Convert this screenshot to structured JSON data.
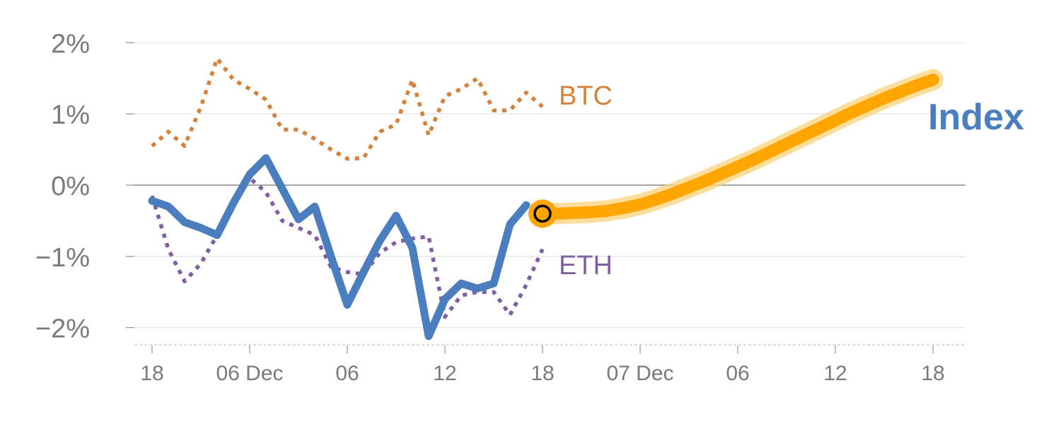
{
  "chart_data": {
    "type": "line",
    "x_unit": "hours",
    "y_unit": "%",
    "ylim": [
      -2.2,
      2.05
    ],
    "xlim": [
      -1,
      49
    ],
    "grid": true,
    "colors": {
      "index": "#4a7ebf",
      "btc": "#d4823a",
      "eth": "#8060a0",
      "forecast": "#ffa500",
      "forecast_glow": "#fcd27a",
      "zero_line": "#888888",
      "grid": "#e6e6e6",
      "tick_label": "#7a7a7a"
    },
    "y_ticks": [
      {
        "value": 2,
        "label": "2%"
      },
      {
        "value": 1,
        "label": "1%"
      },
      {
        "value": 0,
        "label": "0%"
      },
      {
        "value": -1,
        "label": "−1%"
      },
      {
        "value": -2,
        "label": "−2%"
      }
    ],
    "x_ticks": [
      {
        "value": 0,
        "label": "18"
      },
      {
        "value": 6,
        "label": "06 Dec"
      },
      {
        "value": 12,
        "label": "06"
      },
      {
        "value": 18,
        "label": "12"
      },
      {
        "value": 24,
        "label": "18"
      },
      {
        "value": 30,
        "label": "07 Dec"
      },
      {
        "value": 36,
        "label": "06"
      },
      {
        "value": 42,
        "label": "12"
      },
      {
        "value": 48,
        "label": "18"
      }
    ],
    "series": [
      {
        "key": "btc",
        "name": "BTC",
        "style": "dotted",
        "x": [
          0,
          1,
          2,
          3,
          4,
          5,
          6,
          7,
          8,
          9,
          10,
          11,
          12,
          13,
          14,
          15,
          16,
          17,
          18,
          19,
          20,
          21,
          22,
          23,
          24
        ],
        "y": [
          0.55,
          0.75,
          0.55,
          1.1,
          1.78,
          1.48,
          1.35,
          1.2,
          0.78,
          0.78,
          0.65,
          0.5,
          0.37,
          0.38,
          0.75,
          0.85,
          1.48,
          0.7,
          1.25,
          1.35,
          1.5,
          1.05,
          1.05,
          1.3,
          1.1
        ]
      },
      {
        "key": "eth",
        "name": "ETH",
        "style": "dotted",
        "x": [
          0,
          1,
          2,
          3,
          4,
          5,
          6,
          7,
          8,
          9,
          10,
          11,
          12,
          13,
          14,
          15,
          16,
          17,
          18,
          19,
          20,
          21,
          22,
          23,
          24
        ],
        "y": [
          -0.15,
          -0.9,
          -1.35,
          -1.1,
          -0.7,
          -0.2,
          0.1,
          -0.1,
          -0.5,
          -0.6,
          -0.7,
          -1.15,
          -1.22,
          -1.25,
          -0.95,
          -0.8,
          -0.75,
          -0.72,
          -1.85,
          -1.55,
          -1.5,
          -1.5,
          -1.82,
          -1.4,
          -0.9
        ]
      },
      {
        "key": "index",
        "name": "Index",
        "style": "solid",
        "x": [
          0,
          1,
          2,
          3,
          4,
          5,
          6,
          7,
          8,
          9,
          10,
          11,
          12,
          13,
          14,
          15,
          16,
          17,
          18,
          19,
          20,
          21,
          22,
          23
        ],
        "y": [
          -0.22,
          -0.3,
          -0.52,
          -0.6,
          -0.7,
          -0.25,
          0.15,
          0.38,
          -0.05,
          -0.48,
          -0.3,
          -1.0,
          -1.68,
          -1.22,
          -0.78,
          -0.43,
          -0.88,
          -2.12,
          -1.6,
          -1.38,
          -1.45,
          -1.38,
          -0.55,
          -0.28
        ]
      },
      {
        "key": "forecast",
        "style": "thick",
        "x": [
          24,
          25,
          26,
          27,
          28,
          29,
          30,
          31,
          32,
          33,
          34,
          35,
          36,
          37,
          38,
          39,
          40,
          41,
          42,
          43,
          44,
          45,
          46,
          47,
          48
        ],
        "y": [
          -0.4,
          -0.4,
          -0.39,
          -0.38,
          -0.36,
          -0.32,
          -0.27,
          -0.2,
          -0.12,
          -0.03,
          0.06,
          0.16,
          0.26,
          0.36,
          0.47,
          0.58,
          0.69,
          0.8,
          0.91,
          1.02,
          1.12,
          1.22,
          1.31,
          1.4,
          1.48
        ]
      }
    ],
    "marker": {
      "x": 24,
      "y": -0.4
    },
    "labels": {
      "btc": "BTC",
      "eth": "ETH",
      "index": "Index"
    }
  }
}
